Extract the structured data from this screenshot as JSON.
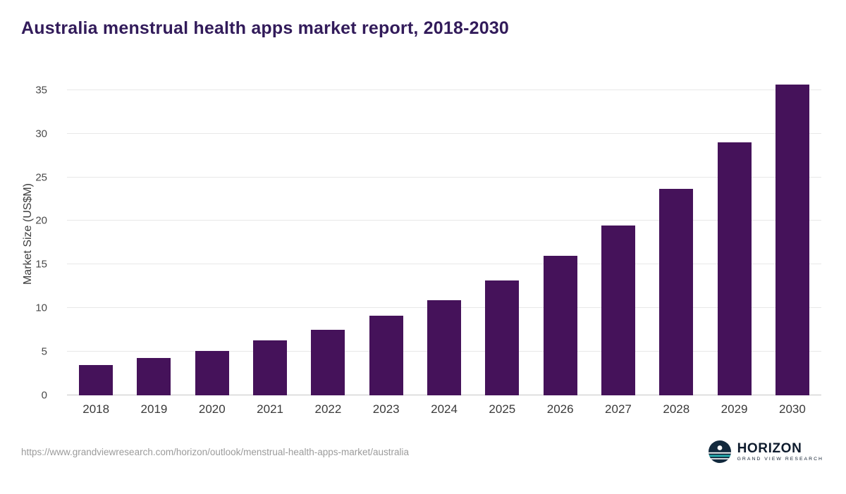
{
  "title": "Australia menstrual health apps market report, 2018-2030",
  "chart_data": {
    "type": "bar",
    "categories": [
      "2018",
      "2019",
      "2020",
      "2021",
      "2022",
      "2023",
      "2024",
      "2025",
      "2026",
      "2027",
      "2028",
      "2029",
      "2030"
    ],
    "values": [
      3.5,
      4.3,
      5.1,
      6.3,
      7.5,
      9.1,
      10.9,
      13.2,
      16.0,
      19.5,
      23.7,
      29.0,
      35.6
    ],
    "title": "Australia menstrual health apps market report, 2018-2030",
    "xlabel": "",
    "ylabel": "Market Size (US$M)",
    "ylim": [
      0,
      37
    ],
    "yticks": [
      0,
      5,
      10,
      15,
      20,
      25,
      30,
      35
    ],
    "grid": "horizontal",
    "legend": "none",
    "bar_color": "#45125a"
  },
  "colors": {
    "title": "#321b5a",
    "bar": "#45125a",
    "gridline": "#e8e8e8",
    "axis_text": "#4a4a4a",
    "logo_navy": "#12293d",
    "logo_teal": "#2ab5b5"
  },
  "footer": {
    "source_url": "https://www.grandviewresearch.com/horizon/outlook/menstrual-health-apps-market/australia",
    "logo": {
      "name": "HORIZON",
      "subtitle": "GRAND VIEW RESEARCH"
    }
  }
}
